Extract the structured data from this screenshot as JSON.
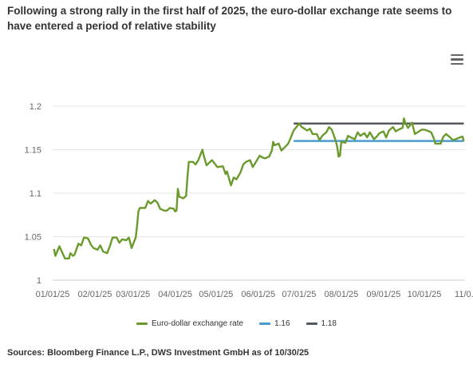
{
  "title": "Following a strong rally in the first half of 2025, the euro-dollar exchange rate seems to have entered a period of relative stability",
  "menu_icon": "hamburger-menu-icon",
  "source": "Sources: Bloomberg Finance L.P., DWS Investment GmbH as of 10/30/25",
  "colors": {
    "line": "#6a9a2c",
    "ref116": "#4a9bd4",
    "ref118": "#555a5f"
  },
  "chart_data": {
    "type": "line",
    "x_date_start": "2025-01-01",
    "x_date_end": "2025-10-30",
    "ylim": [
      1.0,
      1.2
    ],
    "yticks": [
      {
        "value": 1.0,
        "label": "1"
      },
      {
        "value": 1.05,
        "label": "1.05"
      },
      {
        "value": 1.1,
        "label": "1.1"
      },
      {
        "value": 1.15,
        "label": "1.15"
      },
      {
        "value": 1.2,
        "label": "1.2"
      }
    ],
    "xticks": [
      {
        "date": "2025-01-01",
        "label": "01/01/25"
      },
      {
        "date": "2025-02-01",
        "label": "02/01/25"
      },
      {
        "date": "2025-03-01",
        "label": "03/01/25"
      },
      {
        "date": "2025-04-01",
        "label": "04/01/25"
      },
      {
        "date": "2025-05-01",
        "label": "05/01/25"
      },
      {
        "date": "2025-06-01",
        "label": "06/01/25"
      },
      {
        "date": "2025-07-01",
        "label": "07/01/25"
      },
      {
        "date": "2025-08-01",
        "label": "08/01/25"
      },
      {
        "date": "2025-09-01",
        "label": "09/01/25"
      },
      {
        "date": "2025-10-01",
        "label": "10/01/25"
      },
      {
        "date": "2025-11-01",
        "label": "11/0..."
      }
    ],
    "series": [
      {
        "name": "Euro-dollar exchange rate",
        "points": [
          [
            "2025-01-02",
            1.036
          ],
          [
            "2025-01-03",
            1.028
          ],
          [
            "2025-01-06",
            1.039
          ],
          [
            "2025-01-08",
            1.032
          ],
          [
            "2025-01-10",
            1.025
          ],
          [
            "2025-01-13",
            1.025
          ],
          [
            "2025-01-14",
            1.031
          ],
          [
            "2025-01-16",
            1.028
          ],
          [
            "2025-01-17",
            1.029
          ],
          [
            "2025-01-20",
            1.042
          ],
          [
            "2025-01-22",
            1.04
          ],
          [
            "2025-01-24",
            1.049
          ],
          [
            "2025-01-27",
            1.048
          ],
          [
            "2025-01-29",
            1.041
          ],
          [
            "2025-01-31",
            1.037
          ],
          [
            "2025-02-03",
            1.035
          ],
          [
            "2025-02-05",
            1.04
          ],
          [
            "2025-02-07",
            1.033
          ],
          [
            "2025-02-10",
            1.031
          ],
          [
            "2025-02-12",
            1.039
          ],
          [
            "2025-02-14",
            1.049
          ],
          [
            "2025-02-17",
            1.049
          ],
          [
            "2025-02-19",
            1.043
          ],
          [
            "2025-02-21",
            1.047
          ],
          [
            "2025-02-24",
            1.046
          ],
          [
            "2025-02-26",
            1.049
          ],
          [
            "2025-02-28",
            1.037
          ],
          [
            "2025-03-03",
            1.049
          ],
          [
            "2025-03-04",
            1.062
          ],
          [
            "2025-03-05",
            1.079
          ],
          [
            "2025-03-06",
            1.083
          ],
          [
            "2025-03-10",
            1.083
          ],
          [
            "2025-03-12",
            1.091
          ],
          [
            "2025-03-14",
            1.088
          ],
          [
            "2025-03-17",
            1.092
          ],
          [
            "2025-03-19",
            1.089
          ],
          [
            "2025-03-21",
            1.082
          ],
          [
            "2025-03-24",
            1.08
          ],
          [
            "2025-03-26",
            1.08
          ],
          [
            "2025-03-28",
            1.083
          ],
          [
            "2025-03-31",
            1.082
          ],
          [
            "2025-04-01",
            1.079
          ],
          [
            "2025-04-02",
            1.08
          ],
          [
            "2025-04-03",
            1.105
          ],
          [
            "2025-04-04",
            1.096
          ],
          [
            "2025-04-07",
            1.094
          ],
          [
            "2025-04-09",
            1.097
          ],
          [
            "2025-04-10",
            1.118
          ],
          [
            "2025-04-11",
            1.136
          ],
          [
            "2025-04-14",
            1.136
          ],
          [
            "2025-04-16",
            1.133
          ],
          [
            "2025-04-18",
            1.138
          ],
          [
            "2025-04-21",
            1.15
          ],
          [
            "2025-04-22",
            1.143
          ],
          [
            "2025-04-24",
            1.132
          ],
          [
            "2025-04-28",
            1.138
          ],
          [
            "2025-04-30",
            1.134
          ],
          [
            "2025-05-02",
            1.13
          ],
          [
            "2025-05-06",
            1.131
          ],
          [
            "2025-05-08",
            1.122
          ],
          [
            "2025-05-09",
            1.125
          ],
          [
            "2025-05-12",
            1.109
          ],
          [
            "2025-05-14",
            1.118
          ],
          [
            "2025-05-16",
            1.116
          ],
          [
            "2025-05-19",
            1.124
          ],
          [
            "2025-05-21",
            1.133
          ],
          [
            "2025-05-23",
            1.136
          ],
          [
            "2025-05-26",
            1.138
          ],
          [
            "2025-05-28",
            1.13
          ],
          [
            "2025-05-30",
            1.135
          ],
          [
            "2025-06-02",
            1.143
          ],
          [
            "2025-06-04",
            1.141
          ],
          [
            "2025-06-06",
            1.14
          ],
          [
            "2025-06-09",
            1.142
          ],
          [
            "2025-06-11",
            1.149
          ],
          [
            "2025-06-12",
            1.159
          ],
          [
            "2025-06-13",
            1.155
          ],
          [
            "2025-06-16",
            1.157
          ],
          [
            "2025-06-18",
            1.149
          ],
          [
            "2025-06-20",
            1.152
          ],
          [
            "2025-06-23",
            1.157
          ],
          [
            "2025-06-25",
            1.164
          ],
          [
            "2025-06-27",
            1.172
          ],
          [
            "2025-06-30",
            1.178
          ],
          [
            "2025-07-01",
            1.18
          ],
          [
            "2025-07-03",
            1.176
          ],
          [
            "2025-07-07",
            1.172
          ],
          [
            "2025-07-09",
            1.174
          ],
          [
            "2025-07-11",
            1.168
          ],
          [
            "2025-07-14",
            1.168
          ],
          [
            "2025-07-16",
            1.161
          ],
          [
            "2025-07-18",
            1.166
          ],
          [
            "2025-07-21",
            1.17
          ],
          [
            "2025-07-23",
            1.176
          ],
          [
            "2025-07-25",
            1.173
          ],
          [
            "2025-07-28",
            1.16
          ],
          [
            "2025-07-29",
            1.153
          ],
          [
            "2025-07-30",
            1.142
          ],
          [
            "2025-07-31",
            1.143
          ],
          [
            "2025-08-01",
            1.159
          ],
          [
            "2025-08-04",
            1.158
          ],
          [
            "2025-08-06",
            1.166
          ],
          [
            "2025-08-08",
            1.164
          ],
          [
            "2025-08-11",
            1.162
          ],
          [
            "2025-08-13",
            1.17
          ],
          [
            "2025-08-15",
            1.166
          ],
          [
            "2025-08-18",
            1.169
          ],
          [
            "2025-08-20",
            1.164
          ],
          [
            "2025-08-22",
            1.17
          ],
          [
            "2025-08-25",
            1.162
          ],
          [
            "2025-08-27",
            1.165
          ],
          [
            "2025-08-29",
            1.169
          ],
          [
            "2025-09-01",
            1.171
          ],
          [
            "2025-09-03",
            1.164
          ],
          [
            "2025-09-05",
            1.172
          ],
          [
            "2025-09-08",
            1.176
          ],
          [
            "2025-09-10",
            1.171
          ],
          [
            "2025-09-12",
            1.173
          ],
          [
            "2025-09-15",
            1.175
          ],
          [
            "2025-09-16",
            1.186
          ],
          [
            "2025-09-17",
            1.181
          ],
          [
            "2025-09-19",
            1.175
          ],
          [
            "2025-09-22",
            1.181
          ],
          [
            "2025-09-24",
            1.168
          ],
          [
            "2025-09-26",
            1.17
          ],
          [
            "2025-09-29",
            1.173
          ],
          [
            "2025-10-01",
            1.173
          ],
          [
            "2025-10-03",
            1.172
          ],
          [
            "2025-10-06",
            1.17
          ],
          [
            "2025-10-08",
            1.163
          ],
          [
            "2025-10-09",
            1.157
          ],
          [
            "2025-10-13",
            1.157
          ],
          [
            "2025-10-15",
            1.165
          ],
          [
            "2025-10-17",
            1.168
          ],
          [
            "2025-10-20",
            1.164
          ],
          [
            "2025-10-22",
            1.161
          ],
          [
            "2025-10-24",
            1.162
          ],
          [
            "2025-10-27",
            1.164
          ],
          [
            "2025-10-29",
            1.165
          ],
          [
            "2025-10-30",
            1.16
          ]
        ]
      },
      {
        "name": "1.16",
        "value": 1.16,
        "from": "2025-06-27",
        "to": "2025-10-30"
      },
      {
        "name": "1.18",
        "value": 1.18,
        "from": "2025-06-27",
        "to": "2025-10-30"
      }
    ],
    "grid": "horizontal",
    "legend_position": "bottom"
  }
}
